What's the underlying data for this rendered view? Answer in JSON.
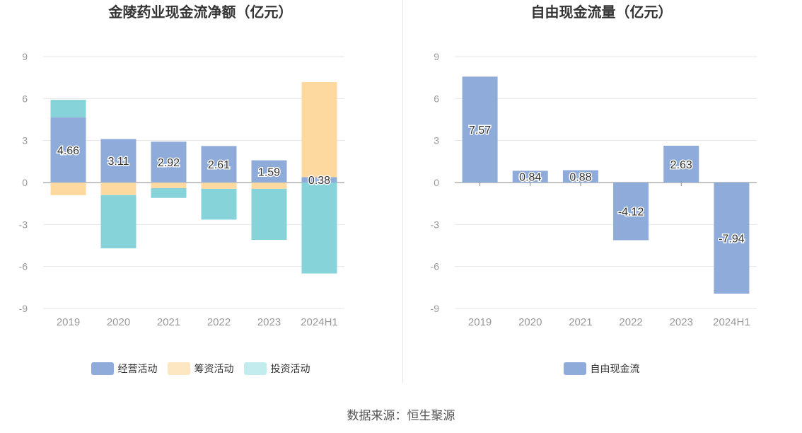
{
  "colors": {
    "operating": "#8eabd9",
    "financing": "#fdd9a0",
    "investing": "#86d3d9",
    "free_cash_flow": "#8eabd9",
    "grid": "#e6e6e6",
    "axis_text": "#999999",
    "label_text": "#333333"
  },
  "source": "数据来源：恒生聚源",
  "chart_data": [
    {
      "type": "bar",
      "stacked": true,
      "title": "金陵药业现金流净额（亿元）",
      "categories": [
        "2019",
        "2020",
        "2021",
        "2022",
        "2023",
        "2024H1"
      ],
      "ylim": [
        -9,
        9
      ],
      "yticks": [
        9,
        6,
        3,
        0,
        -3,
        -6,
        -9
      ],
      "grid": true,
      "legend_position": "bottom-center",
      "series": [
        {
          "name": "经营活动",
          "color_key": "operating",
          "values": [
            4.66,
            3.11,
            2.92,
            2.61,
            1.59,
            0.38
          ],
          "show_labels": true
        },
        {
          "name": "筹资活动",
          "color_key": "financing",
          "values": [
            -0.9,
            -0.9,
            -0.4,
            -0.45,
            -0.45,
            6.8
          ],
          "show_labels": false
        },
        {
          "name": "投资活动",
          "color_key": "investing",
          "values": [
            1.25,
            -3.8,
            -0.7,
            -2.2,
            -3.65,
            -6.5
          ],
          "show_labels": false
        }
      ]
    },
    {
      "type": "bar",
      "title": "自由现金流量（亿元）",
      "categories": [
        "2019",
        "2020",
        "2021",
        "2022",
        "2023",
        "2024H1"
      ],
      "ylim": [
        -9,
        9
      ],
      "yticks": [
        9,
        6,
        3,
        0,
        -3,
        -6,
        -9
      ],
      "grid": true,
      "legend_position": "bottom-center",
      "series": [
        {
          "name": "自由现金流",
          "color_key": "free_cash_flow",
          "values": [
            7.57,
            0.84,
            0.88,
            -4.12,
            2.63,
            -7.94
          ],
          "show_labels": true
        }
      ]
    }
  ]
}
